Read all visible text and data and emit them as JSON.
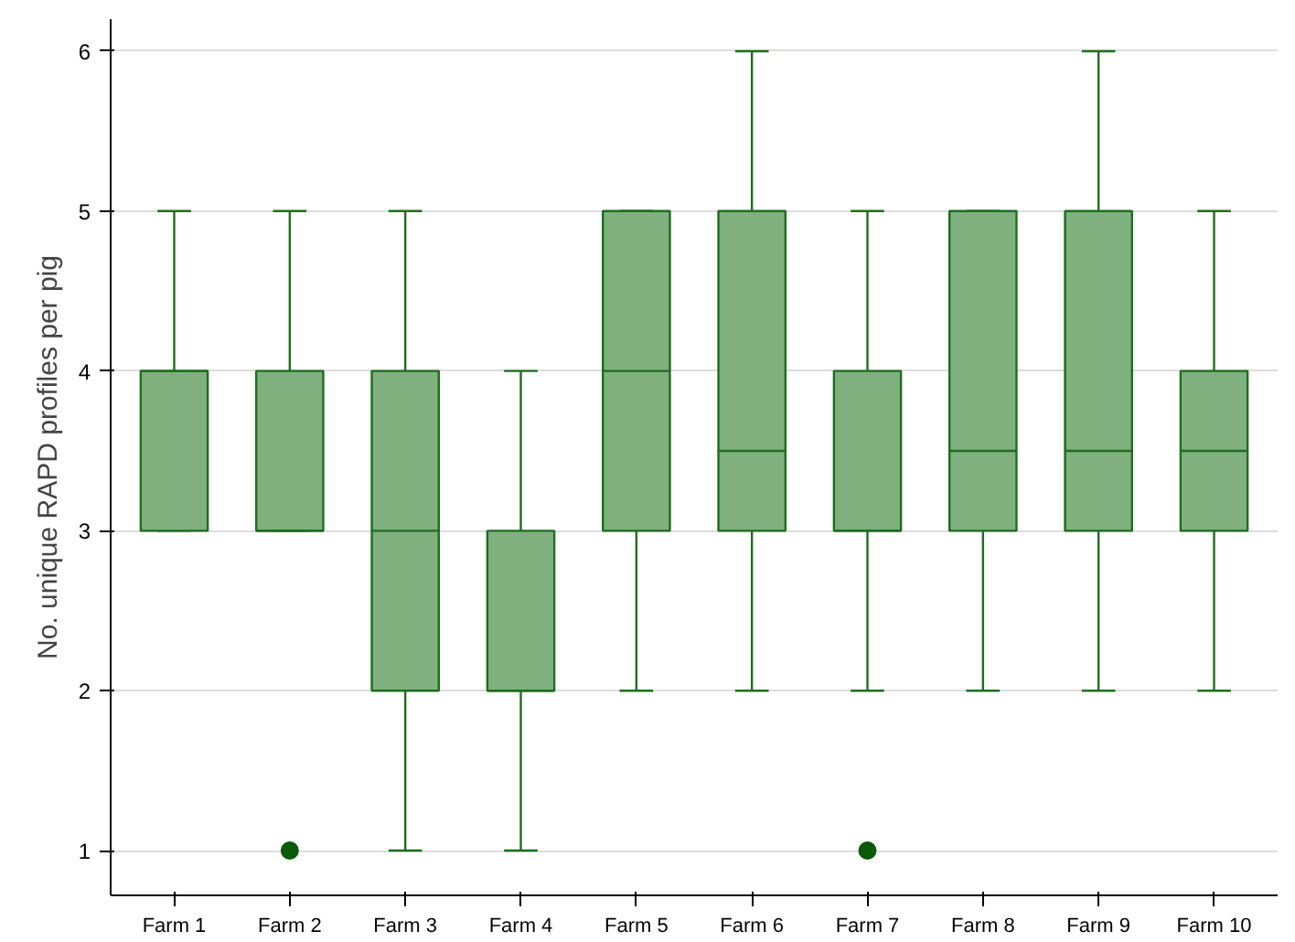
{
  "chart_data": {
    "type": "box",
    "ylabel": "No. unique RAPD profiles per pig",
    "categories": [
      "Farm 1",
      "Farm 2",
      "Farm 3",
      "Farm 4",
      "Farm 5",
      "Farm 6",
      "Farm 7",
      "Farm 8",
      "Farm 9",
      "Farm 10"
    ],
    "series": [
      {
        "color": "#80b07e",
        "boxes": [
          {
            "low": 3,
            "q1": 3,
            "median": 4,
            "q3": 4,
            "high": 5
          },
          {
            "low": 3,
            "q1": 3,
            "median": 3,
            "q3": 4,
            "high": 5,
            "outliers": [
              1
            ]
          },
          {
            "low": 1,
            "q1": 2,
            "median": 3,
            "q3": 4,
            "high": 5
          },
          {
            "low": 1,
            "q1": 2,
            "median": 2,
            "q3": 3,
            "high": 4
          },
          {
            "low": 2,
            "q1": 3,
            "median": 4,
            "q3": 5,
            "high": 5
          },
          {
            "low": 2,
            "q1": 3,
            "median": 3.5,
            "q3": 5,
            "high": 6
          },
          {
            "low": 2,
            "q1": 3,
            "median": 3,
            "q3": 4,
            "high": 5,
            "outliers": [
              1
            ]
          },
          {
            "low": 2,
            "q1": 3,
            "median": 3.5,
            "q3": 5,
            "high": 5
          },
          {
            "low": 2,
            "q1": 3,
            "median": 3.5,
            "q3": 5,
            "high": 6
          },
          {
            "low": 2,
            "q1": 3,
            "median": 3.5,
            "q3": 4,
            "high": 5
          }
        ]
      }
    ],
    "ylim": [
      0.72,
      6.2
    ],
    "yticks": [
      1,
      2,
      3,
      4,
      5,
      6
    ],
    "grid": "y"
  }
}
